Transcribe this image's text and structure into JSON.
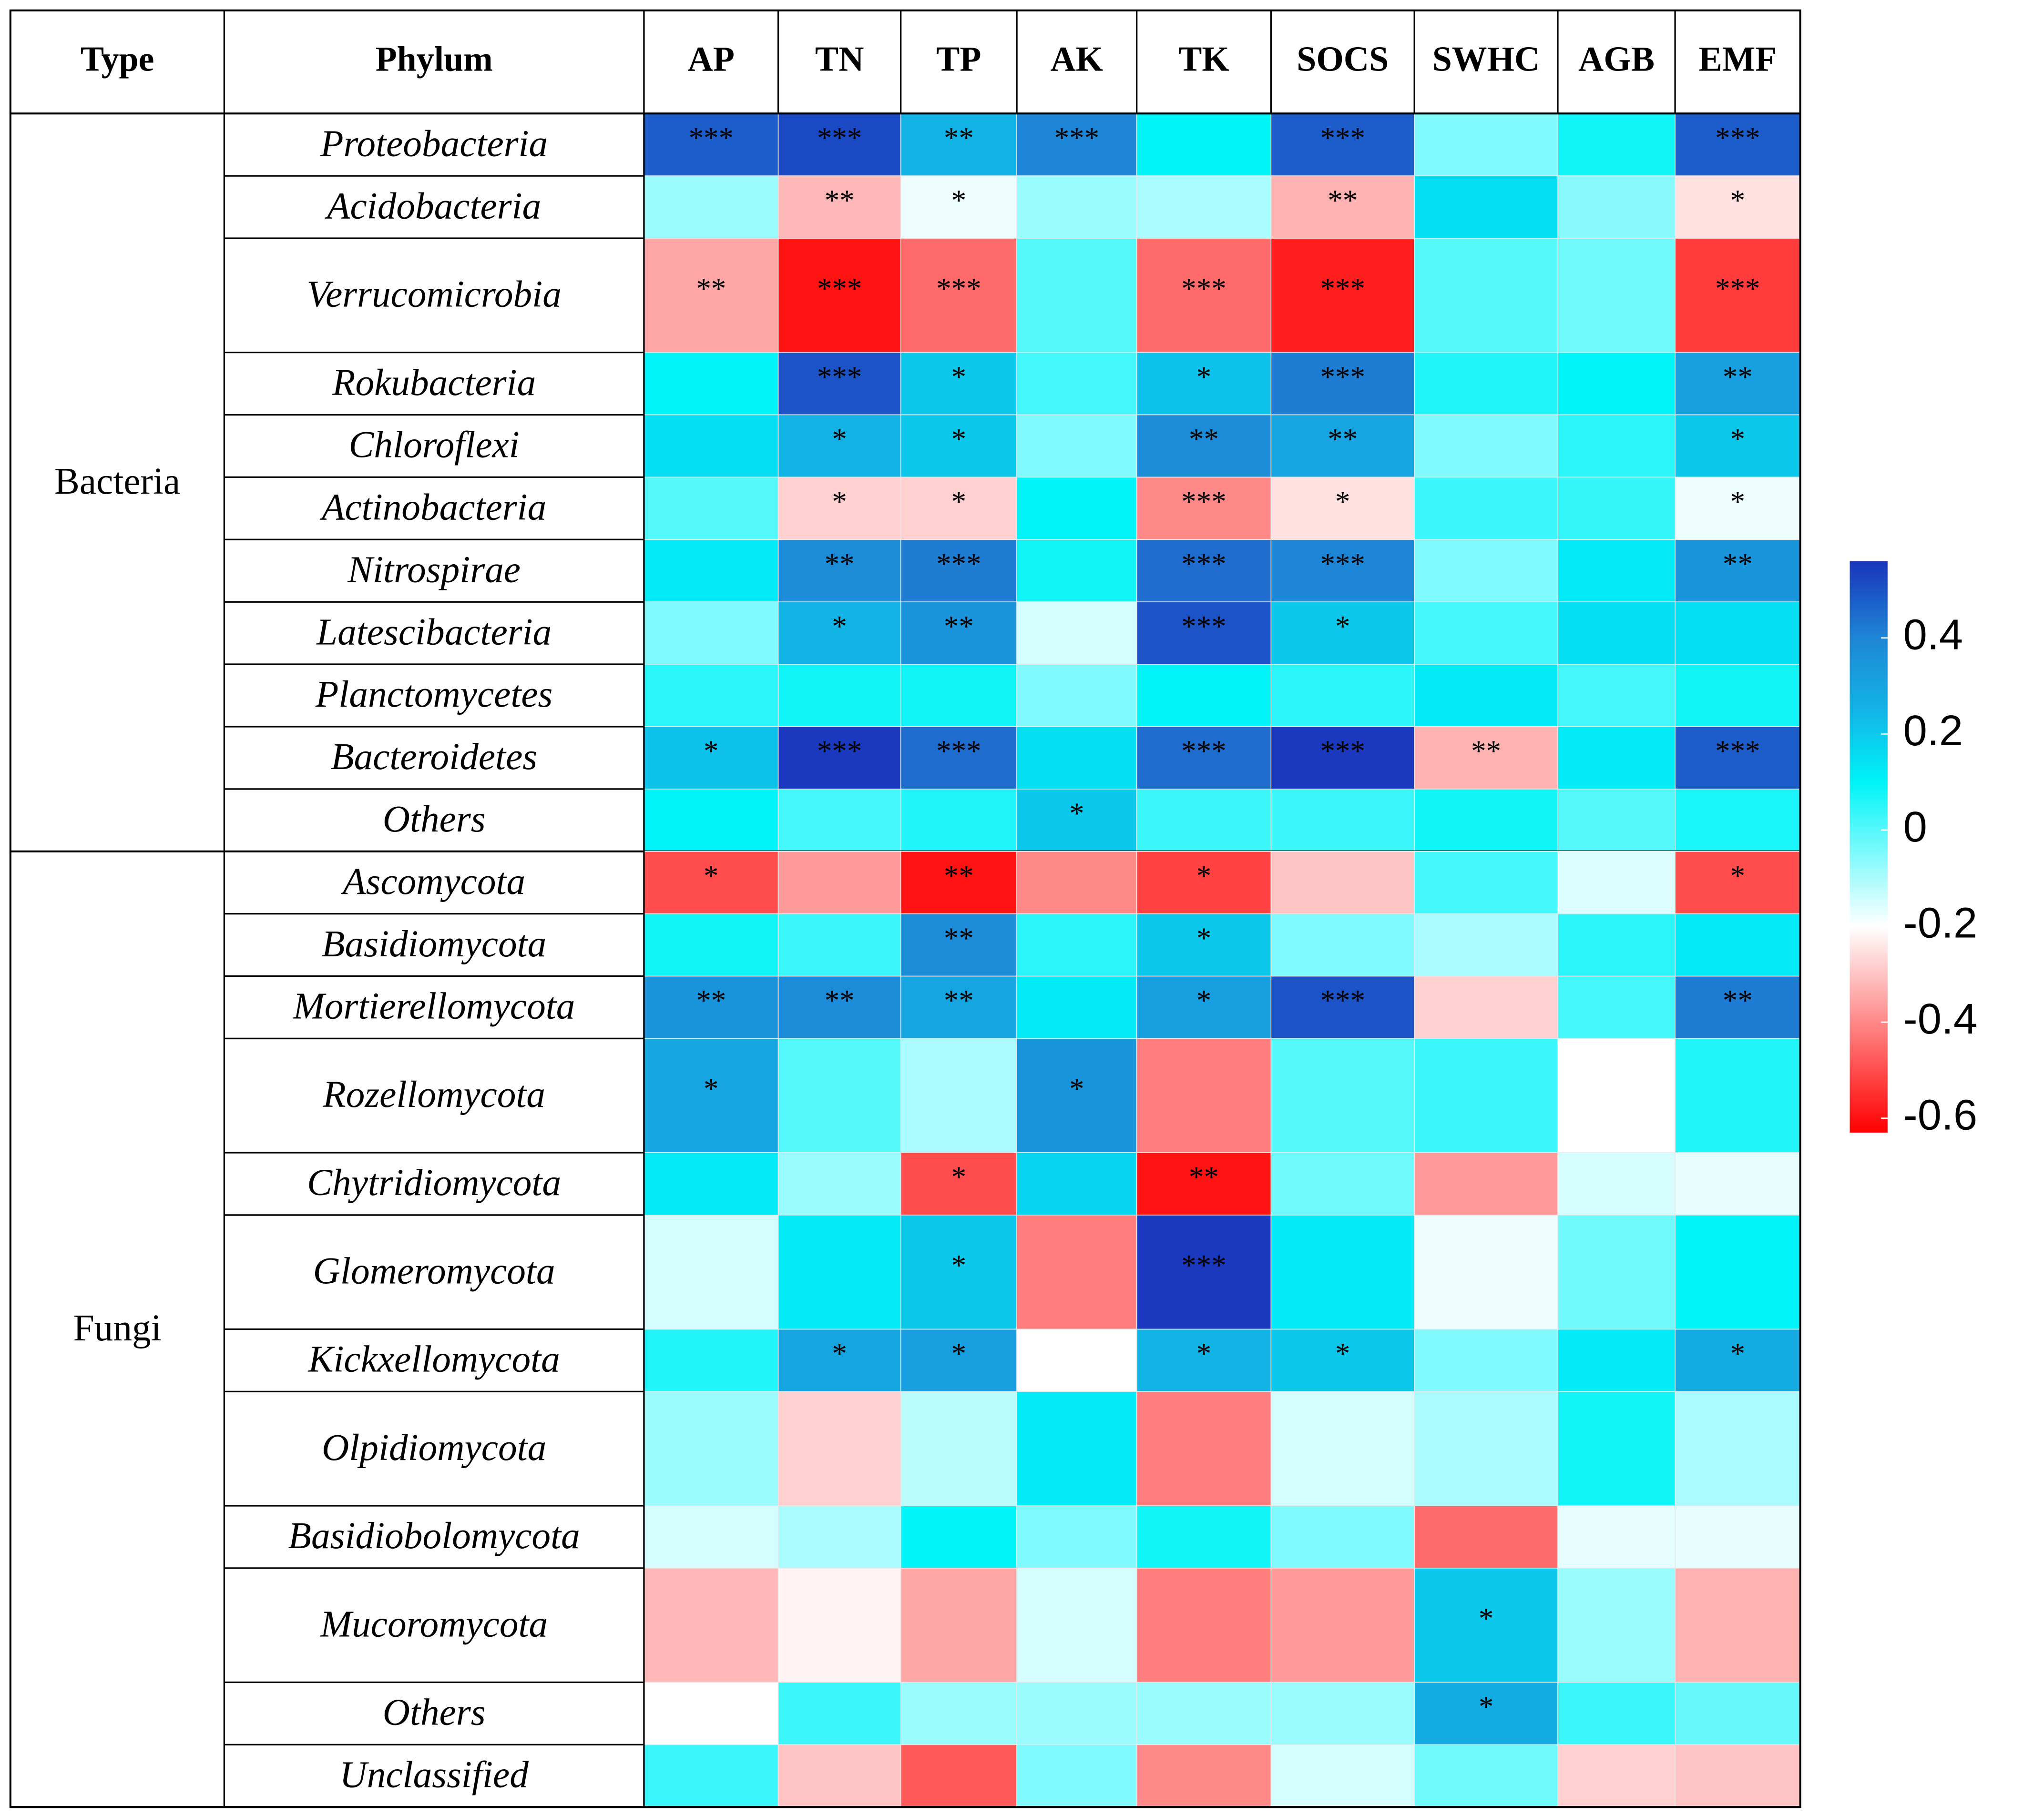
{
  "chart_data": {
    "type": "heatmap",
    "header": [
      "Type",
      "Phylum"
    ],
    "columns": [
      "AP",
      "TN",
      "TP",
      "AK",
      "TK",
      "SOCS",
      "SWHC",
      "AGB",
      "EMF"
    ],
    "groups": [
      {
        "name": "Bacteria",
        "phyla": [
          {
            "name": "Proteobacteria",
            "values": [
              0.48,
              0.52,
              0.25,
              0.4,
              0.1,
              0.48,
              -0.05,
              0.08,
              0.48
            ],
            "labels": [
              "***",
              "***",
              "**",
              "***",
              null,
              "***",
              null,
              null,
              "***"
            ]
          },
          {
            "name": "Acidobacteria",
            "values": [
              -0.08,
              -0.32,
              -0.18,
              -0.08,
              -0.1,
              -0.33,
              0.15,
              -0.06,
              -0.25
            ],
            "labels": [
              null,
              "**",
              "*",
              null,
              null,
              "**",
              null,
              null,
              "*"
            ]
          },
          {
            "name": "Verrucomicrobia",
            "values": [
              -0.35,
              -0.6,
              -0.45,
              0.0,
              -0.45,
              -0.58,
              0.0,
              -0.03,
              -0.53
            ],
            "labels": [
              "**",
              "***",
              "***",
              null,
              "***",
              "***",
              null,
              null,
              "***"
            ]
          },
          {
            "name": "Rokubacteria",
            "values": [
              0.1,
              0.5,
              0.2,
              0.02,
              0.22,
              0.42,
              0.06,
              0.1,
              0.32
            ],
            "labels": [
              null,
              "***",
              "*",
              null,
              "*",
              "***",
              null,
              null,
              "**"
            ]
          },
          {
            "name": "Chloroflexi",
            "values": [
              0.15,
              0.25,
              0.2,
              -0.05,
              0.38,
              0.3,
              -0.05,
              0.05,
              0.2
            ],
            "labels": [
              null,
              "*",
              "*",
              null,
              "**",
              "**",
              null,
              null,
              "*"
            ]
          },
          {
            "name": "Actinobacteria",
            "values": [
              0.0,
              -0.28,
              -0.28,
              0.1,
              -0.4,
              -0.25,
              0.03,
              0.04,
              -0.18
            ],
            "labels": [
              null,
              "*",
              "*",
              null,
              "***",
              "*",
              null,
              null,
              "*"
            ]
          },
          {
            "name": "Nitrospirae",
            "values": [
              0.12,
              0.38,
              0.42,
              0.08,
              0.45,
              0.4,
              -0.05,
              0.12,
              0.35
            ],
            "labels": [
              null,
              "**",
              "***",
              null,
              "***",
              "***",
              null,
              null,
              "**"
            ]
          },
          {
            "name": "Latescibacteria",
            "values": [
              -0.05,
              0.25,
              0.35,
              -0.15,
              0.5,
              0.2,
              0.02,
              0.15,
              0.15
            ],
            "labels": [
              null,
              "*",
              "**",
              null,
              "***",
              "*",
              null,
              null,
              null
            ]
          },
          {
            "name": "Planctomycetes",
            "values": [
              0.05,
              0.08,
              0.08,
              -0.05,
              0.1,
              0.05,
              0.12,
              0.02,
              0.08
            ],
            "labels": [
              null,
              null,
              null,
              null,
              null,
              null,
              null,
              null,
              null
            ]
          },
          {
            "name": "Bacteroidetes",
            "values": [
              0.22,
              0.55,
              0.45,
              0.15,
              0.45,
              0.55,
              -0.33,
              0.12,
              0.48
            ],
            "labels": [
              "*",
              "***",
              "***",
              null,
              "***",
              "***",
              "**",
              null,
              "***"
            ]
          },
          {
            "name": "Others",
            "values": [
              0.1,
              0.02,
              0.06,
              0.2,
              0.03,
              0.03,
              0.08,
              0.0,
              0.07
            ],
            "labels": [
              null,
              null,
              null,
              "*",
              null,
              null,
              null,
              null,
              null
            ]
          }
        ]
      },
      {
        "name": "Fungi",
        "phyla": [
          {
            "name": "Ascomycota",
            "values": [
              -0.5,
              -0.37,
              -0.6,
              -0.4,
              -0.52,
              -0.3,
              0.02,
              -0.16,
              -0.5
            ],
            "labels": [
              "*",
              null,
              "**",
              null,
              "*",
              null,
              null,
              null,
              "*"
            ]
          },
          {
            "name": "Basidiomycota",
            "values": [
              0.08,
              0.03,
              0.38,
              0.05,
              0.2,
              -0.05,
              -0.1,
              0.05,
              0.12
            ],
            "labels": [
              null,
              null,
              "**",
              null,
              "*",
              null,
              null,
              null,
              null
            ]
          },
          {
            "name": "Mortierellomycota",
            "values": [
              0.35,
              0.38,
              0.3,
              0.12,
              0.32,
              0.5,
              -0.28,
              0.02,
              0.42
            ],
            "labels": [
              "**",
              "**",
              "**",
              null,
              "*",
              "***",
              null,
              null,
              "**"
            ]
          },
          {
            "name": "Rozellomycota",
            "values": [
              0.3,
              0.0,
              -0.1,
              0.35,
              -0.42,
              0.0,
              0.03,
              -0.2,
              0.06
            ],
            "labels": [
              "*",
              null,
              null,
              "*",
              null,
              null,
              null,
              null,
              null
            ]
          },
          {
            "name": "Chytridiomycota",
            "values": [
              0.12,
              -0.08,
              -0.5,
              0.17,
              -0.6,
              -0.03,
              -0.37,
              -0.15,
              -0.17
            ],
            "labels": [
              null,
              null,
              "*",
              null,
              "**",
              null,
              null,
              null,
              null
            ]
          },
          {
            "name": "Glomeromycota",
            "values": [
              -0.15,
              0.12,
              0.2,
              -0.42,
              0.55,
              0.12,
              -0.18,
              -0.03,
              0.1
            ],
            "labels": [
              null,
              null,
              "*",
              null,
              "***",
              null,
              null,
              null,
              null
            ]
          },
          {
            "name": "Kickxellomycota",
            "values": [
              0.06,
              0.3,
              0.32,
              -0.2,
              0.25,
              0.2,
              -0.05,
              0.12,
              0.28
            ],
            "labels": [
              null,
              "*",
              "*",
              null,
              "*",
              "*",
              null,
              null,
              "*"
            ]
          },
          {
            "name": "Olpidiomycota",
            "values": [
              -0.08,
              -0.28,
              -0.12,
              0.12,
              -0.42,
              -0.15,
              -0.1,
              0.08,
              -0.1
            ],
            "labels": [
              null,
              null,
              null,
              null,
              null,
              null,
              null,
              null,
              null
            ]
          },
          {
            "name": "Basidiobolomycota",
            "values": [
              -0.15,
              -0.1,
              0.1,
              -0.05,
              0.08,
              -0.05,
              -0.45,
              -0.17,
              -0.17
            ],
            "labels": [
              null,
              null,
              null,
              null,
              null,
              null,
              null,
              null,
              null
            ]
          },
          {
            "name": "Mucoromycota",
            "values": [
              -0.32,
              -0.22,
              -0.35,
              -0.15,
              -0.42,
              -0.37,
              0.2,
              -0.08,
              -0.33
            ],
            "labels": [
              null,
              null,
              null,
              null,
              null,
              null,
              "*",
              null,
              null
            ]
          },
          {
            "name": "Others",
            "values": [
              -0.2,
              0.03,
              -0.08,
              -0.08,
              -0.08,
              -0.08,
              0.28,
              0.03,
              -0.02
            ],
            "labels": [
              null,
              null,
              null,
              null,
              null,
              null,
              "*",
              null,
              null
            ]
          },
          {
            "name": "Unclassified",
            "values": [
              0.03,
              -0.3,
              -0.48,
              -0.05,
              -0.4,
              -0.15,
              -0.03,
              -0.28,
              -0.3
            ],
            "labels": [
              null,
              null,
              null,
              null,
              null,
              null,
              null,
              null,
              null
            ]
          }
        ]
      }
    ],
    "colorscale": [
      [
        -0.63,
        "#ff0000"
      ],
      [
        -0.2,
        "#ffffff"
      ],
      [
        0.1,
        "#00f4f8"
      ],
      [
        0.25,
        "#12b4e6"
      ],
      [
        0.4,
        "#1e86d6"
      ],
      [
        0.56,
        "#1a34bc"
      ]
    ],
    "colorbar": {
      "lim": [
        -0.63,
        0.56
      ],
      "ticks": [
        0.4,
        0.2,
        0,
        -0.2,
        -0.4,
        -0.6
      ]
    }
  }
}
